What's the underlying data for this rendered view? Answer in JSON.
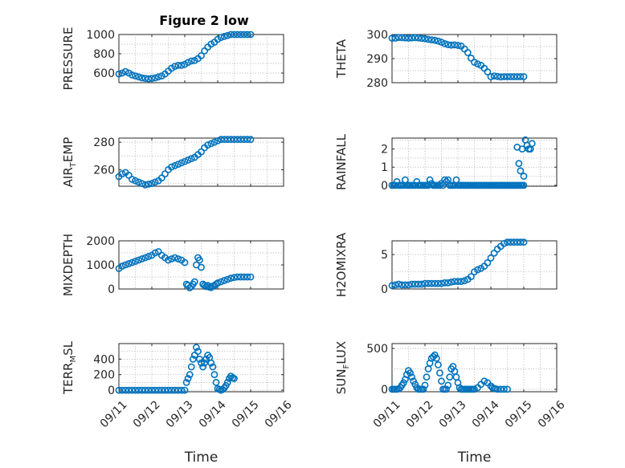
{
  "figure": {
    "title": "Figure 2 low",
    "accent_color": "#0072BD"
  },
  "chart_data": [
    {
      "type": "scatter",
      "ylabel_parts": [
        "PRESSURE"
      ],
      "ylim": [
        500,
        1000
      ],
      "yticks": [
        600,
        800,
        1000
      ],
      "xlim": [
        0,
        5
      ],
      "xticks": [
        0,
        1,
        2,
        3,
        4,
        5
      ],
      "xtick_labels": [],
      "grid": true,
      "x": [
        0.0,
        0.1,
        0.2,
        0.3,
        0.4,
        0.5,
        0.6,
        0.7,
        0.8,
        0.9,
        1.0,
        1.1,
        1.2,
        1.3,
        1.4,
        1.5,
        1.6,
        1.7,
        1.8,
        1.9,
        2.0,
        2.1,
        2.2,
        2.3,
        2.4,
        2.5,
        2.6,
        2.7,
        2.8,
        2.9,
        3.0,
        3.1,
        3.2,
        3.3,
        3.4,
        3.5,
        3.6,
        3.7,
        3.8,
        3.9,
        4.0
      ],
      "y": [
        590,
        600,
        615,
        600,
        580,
        570,
        560,
        550,
        545,
        540,
        545,
        550,
        560,
        570,
        590,
        620,
        650,
        670,
        680,
        680,
        690,
        710,
        725,
        730,
        750,
        780,
        830,
        870,
        900,
        920,
        950,
        970,
        980,
        990,
        1000,
        1000,
        1000,
        1000,
        1000,
        1000,
        1000
      ]
    },
    {
      "type": "scatter",
      "ylabel_parts": [
        "THETA"
      ],
      "ylim": [
        280,
        300
      ],
      "yticks": [
        280,
        290,
        300
      ],
      "xlim": [
        0,
        5
      ],
      "xticks": [
        0,
        1,
        2,
        3,
        4,
        5
      ],
      "xtick_labels": [],
      "grid": true,
      "x": [
        0.0,
        0.1,
        0.2,
        0.3,
        0.4,
        0.5,
        0.6,
        0.7,
        0.8,
        0.9,
        1.0,
        1.1,
        1.2,
        1.3,
        1.4,
        1.5,
        1.6,
        1.7,
        1.8,
        1.9,
        2.0,
        2.1,
        2.2,
        2.3,
        2.4,
        2.5,
        2.6,
        2.7,
        2.8,
        2.9,
        3.0,
        3.1,
        3.2,
        3.3,
        3.4,
        3.5,
        3.6,
        3.7,
        3.8,
        3.9,
        4.0
      ],
      "y": [
        298.5,
        298.5,
        298.8,
        298.7,
        298.6,
        298.5,
        298.6,
        298.7,
        298.6,
        298.4,
        298.3,
        298.0,
        297.8,
        297.6,
        297.3,
        296.8,
        296.2,
        295.8,
        295.6,
        295.7,
        295.5,
        295.2,
        294.0,
        292.5,
        290.2,
        288.5,
        287.8,
        287.2,
        286.0,
        284.5,
        282.5,
        282.8,
        282.6,
        282.4,
        282.5,
        282.5,
        282.5,
        282.5,
        282.5,
        282.5,
        282.5
      ]
    },
    {
      "type": "scatter",
      "ylabel_parts": [
        "AIR",
        "T",
        "EMP"
      ],
      "ylim": [
        248,
        283
      ],
      "yticks": [
        260,
        280
      ],
      "xlim": [
        0,
        5
      ],
      "xticks": [
        0,
        1,
        2,
        3,
        4,
        5
      ],
      "xtick_labels": [],
      "grid": true,
      "x": [
        0.0,
        0.1,
        0.2,
        0.3,
        0.4,
        0.5,
        0.6,
        0.7,
        0.8,
        0.9,
        1.0,
        1.1,
        1.2,
        1.3,
        1.4,
        1.5,
        1.6,
        1.7,
        1.8,
        1.9,
        2.0,
        2.1,
        2.2,
        2.3,
        2.4,
        2.5,
        2.6,
        2.7,
        2.8,
        2.9,
        3.0,
        3.1,
        3.2,
        3.3,
        3.4,
        3.5,
        3.6,
        3.7,
        3.8,
        3.9,
        4.0
      ],
      "y": [
        255,
        257,
        258,
        256,
        253,
        252,
        251,
        250,
        249,
        249.5,
        250,
        251,
        252,
        254,
        257,
        260,
        262,
        263,
        264,
        265,
        266,
        267,
        268,
        269,
        271,
        273,
        276,
        278,
        279,
        280,
        281,
        282,
        282,
        282,
        282,
        282,
        282,
        282,
        282,
        282,
        282
      ]
    },
    {
      "type": "scatter",
      "ylabel_parts": [
        "RAINFALL"
      ],
      "ylim": [
        -0.05,
        2.6
      ],
      "yticks": [
        0,
        1,
        2
      ],
      "xlim": [
        0,
        5
      ],
      "xticks": [
        0,
        1,
        2,
        3,
        4,
        5
      ],
      "xtick_labels": [],
      "grid": true,
      "x": [
        0.0,
        0.05,
        0.1,
        0.15,
        0.2,
        0.25,
        0.3,
        0.35,
        0.4,
        0.45,
        0.5,
        0.55,
        0.6,
        0.65,
        0.7,
        0.75,
        0.8,
        0.85,
        0.9,
        0.95,
        1.0,
        1.05,
        1.1,
        1.15,
        1.2,
        1.25,
        1.3,
        1.35,
        1.4,
        1.45,
        1.5,
        1.55,
        1.6,
        1.65,
        1.7,
        1.75,
        1.8,
        1.85,
        1.9,
        1.95,
        2.0,
        2.05,
        2.1,
        2.15,
        2.2,
        2.25,
        2.3,
        2.35,
        2.4,
        2.45,
        2.5,
        2.55,
        2.6,
        2.65,
        2.7,
        2.75,
        2.8,
        2.85,
        2.9,
        2.95,
        3.0,
        3.05,
        3.1,
        3.15,
        3.2,
        3.25,
        3.3,
        3.35,
        3.4,
        3.45,
        3.5,
        3.55,
        3.6,
        3.65,
        3.7,
        3.75,
        3.8,
        3.85,
        3.9,
        3.95,
        4.0,
        3.8,
        3.85,
        3.9,
        3.95,
        4.0,
        4.05,
        4.1,
        4.15,
        4.2,
        4.25
      ],
      "y": [
        0,
        0,
        0,
        0.2,
        0,
        0,
        0,
        0,
        0.3,
        0,
        0,
        0,
        0,
        0,
        0,
        0.2,
        0,
        0,
        0,
        0,
        0,
        0,
        0,
        0.3,
        0.1,
        0,
        0,
        0,
        0,
        0,
        0.1,
        0,
        0.3,
        0.2,
        0.3,
        0,
        0,
        0,
        0,
        0.3,
        0,
        0,
        0,
        0,
        0,
        0,
        0,
        0,
        0,
        0,
        0,
        0,
        0,
        0,
        0,
        0,
        0,
        0,
        0,
        0,
        0,
        0,
        0,
        0,
        0,
        0,
        0,
        0,
        0,
        0,
        0,
        0,
        0,
        0,
        0,
        0,
        0,
        0,
        0,
        0,
        0,
        2.1,
        1.2,
        0.8,
        2.0,
        0.5,
        2.5,
        2.2,
        2.0,
        2.0,
        2.3
      ]
    },
    {
      "type": "scatter",
      "ylabel_parts": [
        "MIXDEPTH"
      ],
      "ylim": [
        0,
        2000
      ],
      "yticks": [
        0,
        1000,
        2000
      ],
      "xlim": [
        0,
        5
      ],
      "xticks": [
        0,
        1,
        2,
        3,
        4,
        5
      ],
      "xtick_labels": [],
      "grid": true,
      "x": [
        0.0,
        0.1,
        0.2,
        0.3,
        0.4,
        0.5,
        0.6,
        0.7,
        0.8,
        0.9,
        1.0,
        1.1,
        1.2,
        1.3,
        1.4,
        1.5,
        1.6,
        1.7,
        1.8,
        1.9,
        2.0,
        2.05,
        2.1,
        2.15,
        2.2,
        2.25,
        2.3,
        2.35,
        2.4,
        2.45,
        2.5,
        2.55,
        2.6,
        2.65,
        2.7,
        2.75,
        2.8,
        2.85,
        2.9,
        2.95,
        3.0,
        3.1,
        3.2,
        3.3,
        3.4,
        3.5,
        3.6,
        3.7,
        3.8,
        3.9,
        4.0
      ],
      "y": [
        850,
        950,
        1000,
        1050,
        1100,
        1150,
        1200,
        1250,
        1300,
        1350,
        1400,
        1500,
        1550,
        1400,
        1300,
        1200,
        1250,
        1300,
        1250,
        1200,
        1100,
        200,
        150,
        50,
        100,
        200,
        300,
        1000,
        1300,
        1200,
        900,
        200,
        150,
        100,
        150,
        80,
        60,
        120,
        150,
        200,
        250,
        300,
        350,
        400,
        450,
        480,
        500,
        500,
        500,
        500,
        500
      ]
    },
    {
      "type": "scatter",
      "ylabel_parts": [
        "H2OMIXRA"
      ],
      "ylim": [
        0,
        7
      ],
      "yticks": [
        0,
        5
      ],
      "xlim": [
        0,
        5
      ],
      "xticks": [
        0,
        1,
        2,
        3,
        4,
        5
      ],
      "xtick_labels": [],
      "grid": true,
      "x": [
        0.0,
        0.1,
        0.2,
        0.3,
        0.4,
        0.5,
        0.6,
        0.7,
        0.8,
        0.9,
        1.0,
        1.1,
        1.2,
        1.3,
        1.4,
        1.5,
        1.6,
        1.7,
        1.8,
        1.9,
        2.0,
        2.1,
        2.2,
        2.3,
        2.4,
        2.5,
        2.6,
        2.7,
        2.8,
        2.9,
        3.0,
        3.1,
        3.2,
        3.3,
        3.4,
        3.5,
        3.6,
        3.7,
        3.8,
        3.9,
        4.0
      ],
      "y": [
        0.5,
        0.6,
        0.7,
        0.6,
        0.6,
        0.6,
        0.7,
        0.7,
        0.7,
        0.7,
        0.8,
        0.8,
        0.8,
        0.8,
        0.8,
        0.8,
        0.9,
        0.9,
        1.0,
        1.1,
        1.1,
        1.1,
        1.2,
        1.4,
        1.8,
        2.5,
        2.8,
        3.0,
        3.3,
        3.8,
        4.5,
        5.2,
        5.8,
        6.2,
        6.6,
        6.8,
        6.8,
        6.8,
        6.8,
        6.8,
        6.8
      ]
    },
    {
      "type": "scatter",
      "ylabel_parts": [
        "TERR",
        "M",
        "SL"
      ],
      "ylim": [
        -20,
        600
      ],
      "yticks": [
        0,
        200,
        400
      ],
      "xlim": [
        0,
        5
      ],
      "xticks": [
        0,
        1,
        2,
        3,
        4,
        5
      ],
      "xtick_labels": [
        "09/11",
        "09/12",
        "09/13",
        "09/14",
        "09/15",
        "09/16"
      ],
      "xlabel": "Time",
      "grid": true,
      "x": [
        0.0,
        0.1,
        0.2,
        0.3,
        0.4,
        0.5,
        0.6,
        0.7,
        0.8,
        0.9,
        1.0,
        1.1,
        1.2,
        1.3,
        1.4,
        1.5,
        1.6,
        1.7,
        1.8,
        1.9,
        2.0,
        2.05,
        2.1,
        2.15,
        2.2,
        2.25,
        2.3,
        2.35,
        2.4,
        2.45,
        2.5,
        2.55,
        2.6,
        2.65,
        2.7,
        2.75,
        2.8,
        2.85,
        2.9,
        2.95,
        3.0,
        3.05,
        3.1,
        3.15,
        3.2,
        3.25,
        3.3,
        3.35,
        3.4,
        3.45,
        3.5
      ],
      "y": [
        0,
        0,
        0,
        0,
        0,
        0,
        0,
        0,
        0,
        0,
        0,
        0,
        0,
        0,
        0,
        0,
        0,
        0,
        0,
        0,
        0,
        100,
        150,
        200,
        300,
        400,
        450,
        550,
        500,
        400,
        350,
        300,
        350,
        400,
        450,
        420,
        350,
        300,
        200,
        100,
        20,
        10,
        0,
        10,
        30,
        60,
        100,
        150,
        180,
        160,
        150
      ]
    },
    {
      "type": "scatter",
      "ylabel_parts": [
        "SUN",
        "F",
        "LUX"
      ],
      "ylim": [
        -30,
        560
      ],
      "yticks": [
        0,
        500
      ],
      "xlim": [
        0,
        5
      ],
      "xticks": [
        0,
        1,
        2,
        3,
        4,
        5
      ],
      "xtick_labels": [
        "09/11",
        "09/12",
        "09/13",
        "09/14",
        "09/15",
        "09/16"
      ],
      "xlabel": "Time",
      "grid": true,
      "x": [
        0.0,
        0.05,
        0.1,
        0.15,
        0.2,
        0.25,
        0.3,
        0.35,
        0.4,
        0.45,
        0.5,
        0.55,
        0.6,
        0.65,
        0.7,
        0.75,
        0.8,
        0.85,
        0.9,
        0.95,
        1.0,
        1.05,
        1.1,
        1.15,
        1.2,
        1.25,
        1.3,
        1.35,
        1.4,
        1.45,
        1.5,
        1.55,
        1.6,
        1.65,
        1.7,
        1.75,
        1.8,
        1.85,
        1.9,
        1.95,
        2.0,
        2.05,
        2.1,
        2.15,
        2.2,
        2.25,
        2.3,
        2.35,
        2.4,
        2.45,
        2.5,
        2.6,
        2.7,
        2.8,
        2.9,
        3.0,
        3.05,
        3.1,
        3.15,
        3.2,
        3.3,
        3.4,
        3.5
      ],
      "y": [
        0,
        0,
        0,
        0,
        5,
        20,
        50,
        80,
        120,
        180,
        230,
        200,
        150,
        100,
        60,
        20,
        0,
        0,
        0,
        0,
        50,
        150,
        250,
        320,
        380,
        400,
        420,
        380,
        300,
        200,
        100,
        0,
        0,
        0,
        50,
        150,
        250,
        280,
        220,
        150,
        80,
        20,
        0,
        0,
        0,
        0,
        0,
        0,
        0,
        0,
        0,
        20,
        60,
        100,
        80,
        40,
        20,
        10,
        5,
        0,
        0,
        0,
        0
      ]
    }
  ]
}
